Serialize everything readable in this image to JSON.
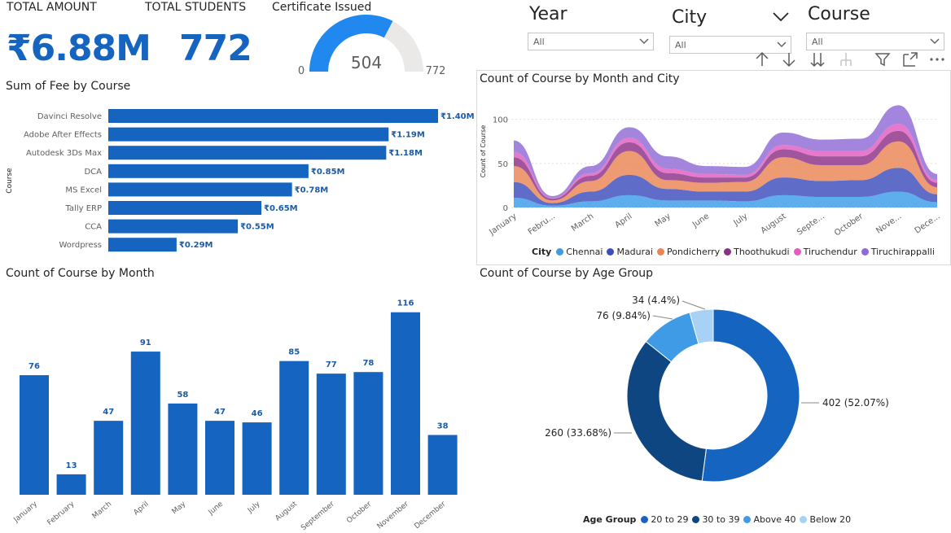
{
  "kpis": {
    "total_amount": {
      "label": "TOTAL AMOUNT",
      "value": "₹6.88M"
    },
    "total_students": {
      "label": "TOTAL STUDENTS",
      "value": "772"
    },
    "certificate": {
      "label": "Certificate Issued",
      "value": "504",
      "min": "0",
      "max": "772",
      "fraction": 0.653
    }
  },
  "slicers": {
    "year": {
      "title": "Year",
      "value": "All"
    },
    "city": {
      "title": "City",
      "value": "All"
    },
    "course": {
      "title": "Course",
      "value": "All"
    }
  },
  "toolbar": [
    "arrow-up-icon",
    "arrow-down-icon",
    "double-arrow-down-icon",
    "expand-hierarchy-icon",
    "filter-icon",
    "focus-mode-icon",
    "more-options-icon"
  ],
  "colors": {
    "primary": "#1565c0",
    "dark": "#0d4680",
    "light": "#3f9be6",
    "lighter": "#a8d1f6"
  },
  "chart_data": [
    {
      "id": "fee_by_course",
      "type": "bar",
      "orientation": "horizontal",
      "title": "Sum of Fee by Course",
      "ylabel": "Course",
      "categories": [
        "Davinci Resolve",
        "Adobe After Effects",
        "Autodesk 3Ds Max",
        "DCA",
        "MS Excel",
        "Tally ERP",
        "CCA",
        "Wordpress"
      ],
      "values": [
        1.4,
        1.19,
        1.18,
        0.85,
        0.78,
        0.65,
        0.55,
        0.29
      ],
      "data_labels": [
        "₹1.40M",
        "₹1.19M",
        "₹1.18M",
        "₹0.85M",
        "₹0.78M",
        "₹0.65M",
        "₹0.55M",
        "₹0.29M"
      ],
      "xlim": [
        0,
        1.4
      ]
    },
    {
      "id": "course_by_month_city",
      "type": "area",
      "title": "Count of Course by Month and City",
      "ylabel": "Count of Course",
      "yticks": [
        "0",
        "50",
        "100"
      ],
      "ylim": [
        0,
        120
      ],
      "categories": [
        "January",
        "Febru...",
        "March",
        "April",
        "May",
        "June",
        "July",
        "August",
        "Septe...",
        "October",
        "Nove...",
        "Dece..."
      ],
      "legend_title": "City",
      "series": [
        {
          "name": "Chennai",
          "color": "#3a9be8",
          "values": [
            11,
            2,
            7,
            14,
            8,
            8,
            7,
            14,
            12,
            12,
            18,
            6
          ]
        },
        {
          "name": "Madurai",
          "color": "#3c4dbd",
          "values": [
            18,
            3,
            11,
            23,
            13,
            10,
            11,
            20,
            18,
            19,
            27,
            9
          ]
        },
        {
          "name": "Pondicherry",
          "color": "#ea8556",
          "values": [
            18,
            3,
            12,
            27,
            10,
            10,
            11,
            23,
            18,
            17,
            30,
            8
          ]
        },
        {
          "name": "Thoothukudi",
          "color": "#8c2f87",
          "values": [
            10,
            2,
            6,
            10,
            8,
            6,
            5,
            9,
            10,
            10,
            12,
            5
          ]
        },
        {
          "name": "Tiruchendur",
          "color": "#e05cbf",
          "values": [
            6,
            1,
            3,
            5,
            5,
            4,
            3,
            5,
            6,
            6,
            8,
            3
          ]
        },
        {
          "name": "Tiruchirappalli",
          "color": "#8f6ad6",
          "values": [
            13,
            2,
            8,
            12,
            14,
            9,
            9,
            14,
            13,
            14,
            21,
            7
          ]
        }
      ]
    },
    {
      "id": "course_by_month",
      "type": "bar",
      "title": "Count of Course by Month",
      "categories": [
        "January",
        "February",
        "March",
        "April",
        "May",
        "June",
        "July",
        "August",
        "September",
        "October",
        "November",
        "December"
      ],
      "values": [
        76,
        13,
        47,
        91,
        58,
        47,
        46,
        85,
        77,
        78,
        116,
        38
      ],
      "ylim": [
        0,
        120
      ]
    },
    {
      "id": "course_by_age",
      "type": "pie",
      "title": "Count of Course by Age Group",
      "legend_title": "Age Group",
      "slices": [
        {
          "name": "20 to 29",
          "value": 402,
          "label": "402 (52.07%)",
          "color": "#1565c0"
        },
        {
          "name": "30 to 39",
          "value": 260,
          "label": "260 (33.68%)",
          "color": "#0d4680"
        },
        {
          "name": "Above 40",
          "value": 76,
          "label": "76 (9.84%)",
          "color": "#3f9be6"
        },
        {
          "name": "Below 20",
          "value": 34,
          "label": "34 (4.4%)",
          "color": "#a8d1f6"
        }
      ]
    }
  ]
}
